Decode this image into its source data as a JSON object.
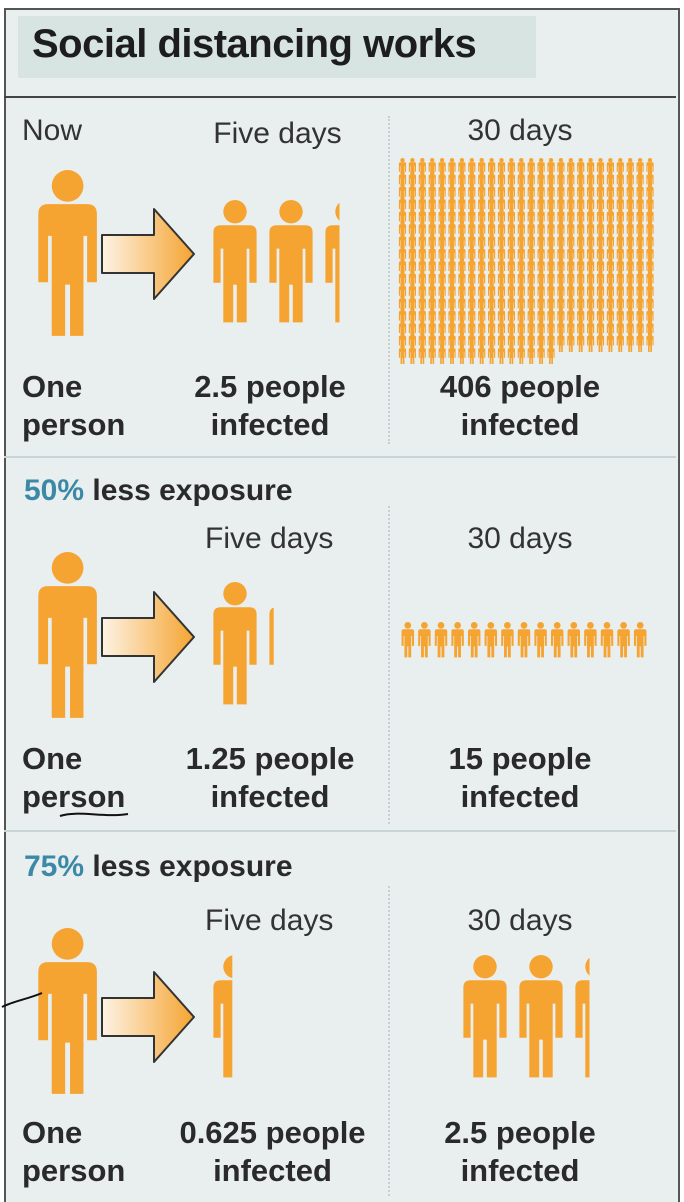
{
  "title": "Social distancing works",
  "colors": {
    "figure": "#f5a431",
    "accent": "#3b89a6",
    "background": "#e9eeef",
    "title_highlight": "#d7e4e1"
  },
  "rows": [
    {
      "heading_pct": "",
      "heading_text": "",
      "col_now": "Now",
      "col_five": "Five days",
      "col_thirty": "30 days",
      "start_label_1": "One",
      "start_label_2": "person",
      "five_label_1": "2.5 people",
      "five_label_2": "infected",
      "thirty_label_1": "406 people",
      "thirty_label_2": "infected",
      "five_count": 2.5,
      "thirty_count": 406
    },
    {
      "heading_pct": "50%",
      "heading_text": "less exposure",
      "col_now": "",
      "col_five": "Five days",
      "col_thirty": "30 days",
      "start_label_1": "One",
      "start_label_2": "person",
      "five_label_1": "1.25 people",
      "five_label_2": "infected",
      "thirty_label_1": "15 people",
      "thirty_label_2": "infected",
      "five_count": 1.25,
      "thirty_count": 15
    },
    {
      "heading_pct": "75%",
      "heading_text": "less exposure",
      "col_now": "",
      "col_five": "Five days",
      "col_thirty": "30 days",
      "start_label_1": "One",
      "start_label_2": "person",
      "five_label_1": "0.625 people",
      "five_label_2": "infected",
      "thirty_label_1": "2.5 people",
      "thirty_label_2": "infected",
      "five_count": 0.625,
      "thirty_count": 2.5
    }
  ]
}
